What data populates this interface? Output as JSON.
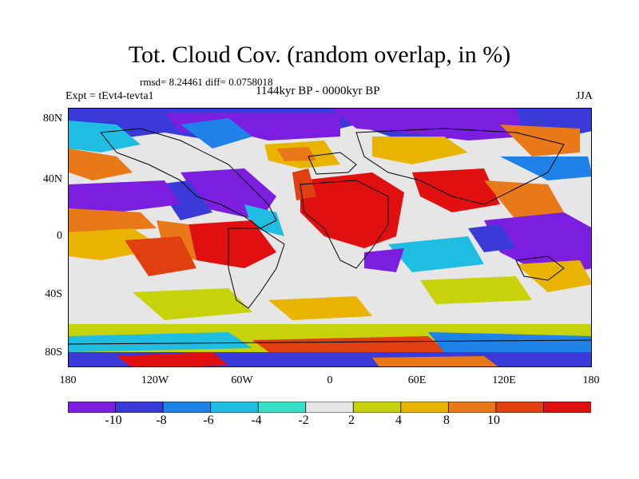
{
  "title": "Tot. Cloud Cov. (random overlap, in %)",
  "stats": "rmsd= 8.24461 diff= 0.0758018",
  "period": "1144kyr BP - 0000kyr BP",
  "experiment": "Expt = tEvt4-tevta1",
  "season": "JJA",
  "lat_ticks": [
    "80N",
    "40N",
    "0",
    "40S",
    "80S"
  ],
  "lon_ticks": [
    "180",
    "120W",
    "60W",
    "0",
    "60E",
    "120E",
    "180"
  ],
  "colorbar": {
    "labels": [
      "-10",
      "-8",
      "-6",
      "-4",
      "-2",
      "2",
      "4",
      "8",
      "10"
    ],
    "colors": [
      "#7b1ee0",
      "#3a3ad8",
      "#1e82e8",
      "#20bde3",
      "#38e0c8",
      "#e6e6e6",
      "#c8d20a",
      "#e8b400",
      "#e87818",
      "#e04010",
      "#e01010"
    ]
  }
}
